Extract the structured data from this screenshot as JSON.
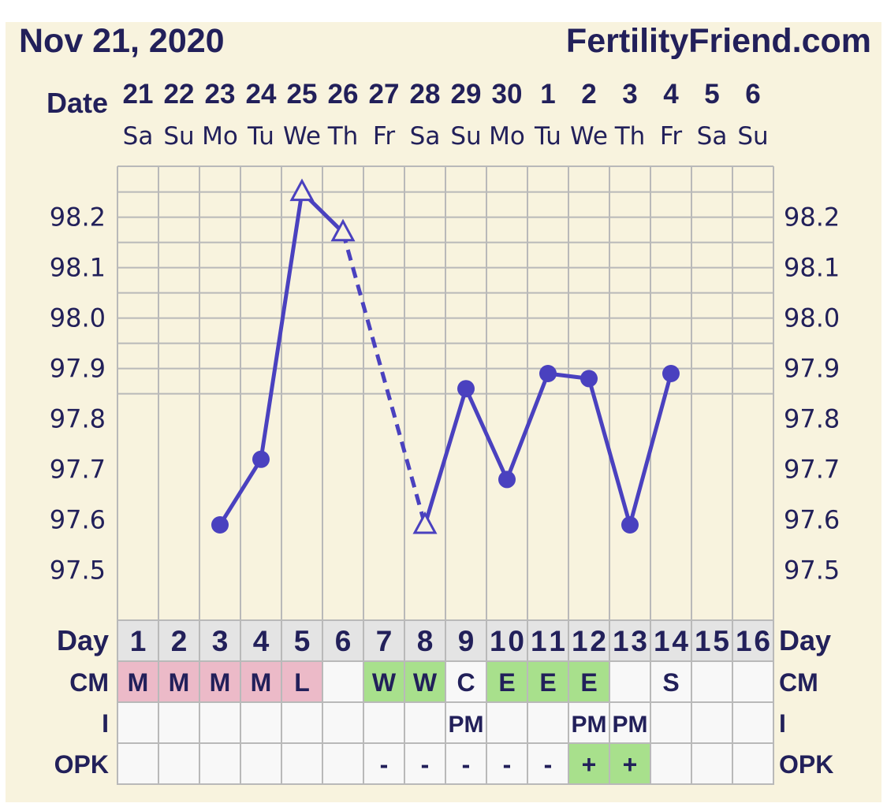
{
  "header": {
    "date": "Nov 21, 2020",
    "site": "FertilityFriend.com"
  },
  "labels": {
    "date_row": "Date",
    "day_row": "Day",
    "cm_row": "CM",
    "i_row": "I",
    "opk_row": "OPK"
  },
  "colors": {
    "background": "#f8f3de",
    "ink": "#22205a",
    "line": "#4a41bf",
    "grid": "#b9b9b9",
    "day_cell": "#e4e4e4",
    "cell": "#f8f8f8",
    "menses": "#ecbac8",
    "fertile": "#a8e08c"
  },
  "chart_data": {
    "type": "line",
    "title": "",
    "xlabel": "Date",
    "ylabel": "",
    "ylim": [
      97.4,
      98.3
    ],
    "yticks": [
      "98.2",
      "98.1",
      "98.0",
      "97.9",
      "97.8",
      "97.7",
      "97.6",
      "97.5"
    ],
    "dates": [
      "21",
      "22",
      "23",
      "24",
      "25",
      "26",
      "27",
      "28",
      "29",
      "30",
      "1",
      "2",
      "3",
      "4",
      "5",
      "6"
    ],
    "weekdays": [
      "Sa",
      "Su",
      "Mo",
      "Tu",
      "We",
      "Th",
      "Fr",
      "Sa",
      "Su",
      "Mo",
      "Tu",
      "We",
      "Th",
      "Fr",
      "Sa",
      "Su"
    ],
    "cycle_days": [
      "1",
      "2",
      "3",
      "4",
      "5",
      "6",
      "7",
      "8",
      "9",
      "10",
      "11",
      "12",
      "13",
      "14",
      "15",
      "16"
    ],
    "temps": [
      null,
      null,
      97.59,
      97.72,
      98.25,
      98.17,
      null,
      97.59,
      97.86,
      97.68,
      97.89,
      97.88,
      97.59,
      97.89,
      null,
      null
    ],
    "markers": [
      "",
      "",
      "dot",
      "dot",
      "triangle",
      "triangle",
      "",
      "triangle",
      "dot",
      "dot",
      "dot",
      "dot",
      "dot",
      "dot",
      "",
      ""
    ],
    "dashed_segments": [
      [
        5,
        7
      ]
    ],
    "cm": [
      "M",
      "M",
      "M",
      "M",
      "L",
      "",
      "W",
      "W",
      "C",
      "E",
      "E",
      "E",
      "",
      "S",
      "",
      ""
    ],
    "cm_colors": [
      "menses",
      "menses",
      "menses",
      "menses",
      "menses",
      "",
      "fertile",
      "fertile",
      "",
      "fertile",
      "fertile",
      "fertile",
      "",
      "",
      "",
      ""
    ],
    "intercourse": [
      "",
      "",
      "",
      "",
      "",
      "",
      "",
      "",
      "PM",
      "",
      "",
      "PM",
      "PM",
      "",
      "",
      ""
    ],
    "opk": [
      "",
      "",
      "",
      "",
      "",
      "",
      "-",
      "-",
      "-",
      "-",
      "-",
      "+",
      "+",
      "",
      "",
      ""
    ],
    "opk_colors": [
      "",
      "",
      "",
      "",
      "",
      "",
      "",
      "",
      "",
      "",
      "",
      "fertile",
      "fertile",
      "",
      "",
      ""
    ]
  }
}
